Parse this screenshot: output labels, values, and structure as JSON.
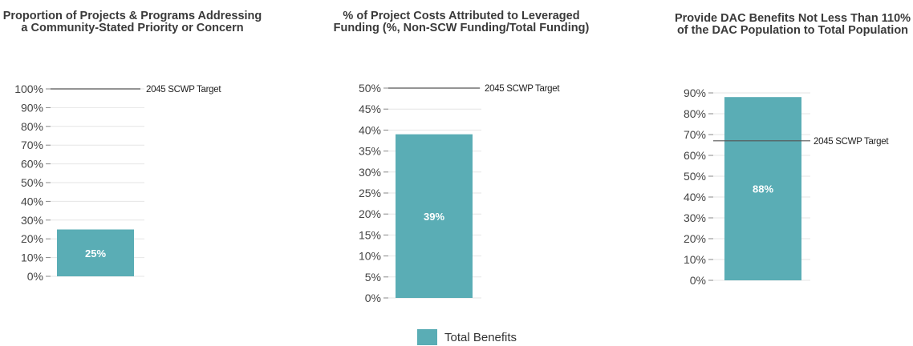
{
  "colors": {
    "bar": "#5aadb5",
    "target_line": "#555555",
    "gridline": "#e6e6e6",
    "tick_mark": "#888888"
  },
  "chart_data": [
    {
      "type": "bar",
      "title": "Proportion of Projects & Programs Addressing a Community-Stated Priority or Concern",
      "categories": [
        "Total Benefits"
      ],
      "values": [
        25
      ],
      "value_labels": [
        "25%"
      ],
      "ylim": [
        0,
        100
      ],
      "yticks": [
        0,
        10,
        20,
        30,
        40,
        50,
        60,
        70,
        80,
        90,
        100
      ],
      "ytick_labels": [
        "0%",
        "10%",
        "20%",
        "30%",
        "40%",
        "50%",
        "60%",
        "70%",
        "80%",
        "90%",
        "100%"
      ],
      "target": {
        "value": 100,
        "label": "2045 SCWP Target"
      }
    },
    {
      "type": "bar",
      "title": "% of Project Costs Attributed to Leveraged Funding (%, Non-SCW Funding/Total Funding)",
      "categories": [
        "Total Benefits"
      ],
      "values": [
        39
      ],
      "value_labels": [
        "39%"
      ],
      "ylim": [
        0,
        50
      ],
      "yticks": [
        0,
        5,
        10,
        15,
        20,
        25,
        30,
        35,
        40,
        45,
        50
      ],
      "ytick_labels": [
        "0%",
        "5%",
        "10%",
        "15%",
        "20%",
        "25%",
        "30%",
        "35%",
        "40%",
        "45%",
        "50%"
      ],
      "target": {
        "value": 50,
        "label": "2045 SCWP Target"
      }
    },
    {
      "type": "bar",
      "title": "Provide DAC Benefits Not Less Than 110% of the DAC Population to Total Population",
      "categories": [
        "Total Benefits"
      ],
      "values": [
        88
      ],
      "value_labels": [
        "88%"
      ],
      "ylim": [
        0,
        90
      ],
      "yticks": [
        0,
        10,
        20,
        30,
        40,
        50,
        60,
        70,
        80,
        90
      ],
      "ytick_labels": [
        "0%",
        "10%",
        "20%",
        "30%",
        "40%",
        "50%",
        "60%",
        "70%",
        "80%",
        "90%"
      ],
      "target": {
        "value": 67,
        "label": "2045 SCWP Target"
      }
    }
  ],
  "legend": {
    "label": "Total Benefits",
    "position": "bottom-center"
  }
}
